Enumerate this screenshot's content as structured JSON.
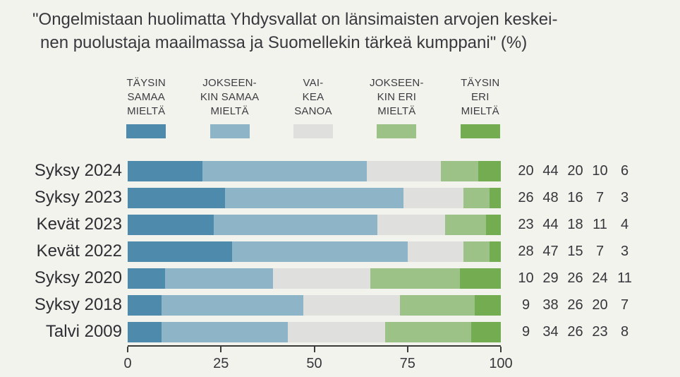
{
  "title": {
    "line1": "\"Ongelmistaan huolimatta Yhdysvallat on länsimaisten arvojen keskei-",
    "line2": "nen puolustaja maailmassa ja Suomellekin tärkeä kumppani\" (%)"
  },
  "colors": {
    "background": "#f2f3ec",
    "axis": "#3b3b3b",
    "text": "#36363c"
  },
  "legend": {
    "items": [
      {
        "label": "TÄYSIN\nSAMAA\nMIELTÄ",
        "color": "#4e8aab"
      },
      {
        "label": "JOKSEEN-\nKIN SAMAA\nMIELTÄ",
        "color": "#8eb4c7"
      },
      {
        "label": "VAI-\nKEA\nSANOA",
        "color": "#dfdfde"
      },
      {
        "label": "JOKSEEN-\nKIN ERI\nMIELTÄ",
        "color": "#9cc287"
      },
      {
        "label": "TÄYSIN\nERI\nMIELTÄ",
        "color": "#74ac52"
      }
    ]
  },
  "chart_data": {
    "type": "bar",
    "stacked": true,
    "orientation": "horizontal",
    "title": "\"Ongelmistaan huolimatta Yhdysvallat on länsimaisten arvojen keskeinen puolustaja maailmassa ja Suomellekin tärkeä kumppani\" (%)",
    "categories": [
      "Syksy 2024",
      "Syksy 2023",
      "Kevät 2023",
      "Kevät 2022",
      "Syksy 2020",
      "Syksy 2018",
      "Talvi 2009"
    ],
    "series": [
      {
        "name": "Täysin samaa mieltä",
        "color": "#4e8aab",
        "values": [
          20,
          26,
          23,
          28,
          10,
          9,
          9
        ]
      },
      {
        "name": "Jokseenkin samaa mieltä",
        "color": "#8eb4c7",
        "values": [
          44,
          48,
          44,
          47,
          29,
          38,
          34
        ]
      },
      {
        "name": "Vaikea sanoa",
        "color": "#dfdfde",
        "values": [
          20,
          16,
          18,
          15,
          26,
          26,
          26
        ]
      },
      {
        "name": "Jokseenkin eri mieltä",
        "color": "#9cc287",
        "values": [
          10,
          7,
          11,
          7,
          24,
          20,
          23
        ]
      },
      {
        "name": "Täysin eri mieltä",
        "color": "#74ac52",
        "values": [
          6,
          3,
          4,
          3,
          11,
          7,
          8
        ]
      }
    ],
    "xlim": [
      0,
      100
    ],
    "x_ticks": [
      "0",
      "25",
      "50",
      "75",
      "100"
    ],
    "legend_position": "top",
    "grid": false,
    "value_labels_shown_right_of_bars": true
  }
}
